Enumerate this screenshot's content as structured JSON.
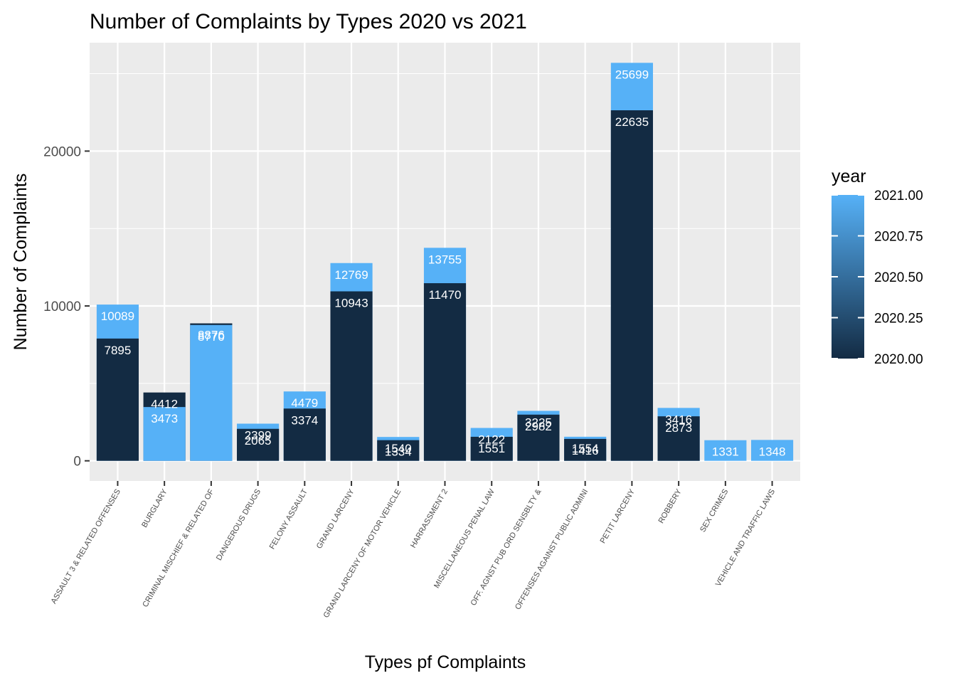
{
  "chart_data": {
    "type": "bar",
    "title": "Number of Complaints by Types 2020 vs 2021",
    "xlabel": "Types pf Complaints",
    "ylabel": "Number of Complaints",
    "ylim": [
      -1300,
      27000
    ],
    "yticks": [
      0,
      10000,
      20000
    ],
    "grid": true,
    "categories": [
      "ASSAULT 3 & RELATED OFFENSES",
      "BURGLARY",
      "CRIMINAL MISCHIEF & RELATED OF",
      "DANGEROUS DRUGS",
      "FELONY ASSAULT",
      "GRAND LARCENY",
      "GRAND LARCENY OF MOTOR VEHICLE",
      "HARRASSMENT 2",
      "MISCELLANEOUS PENAL LAW",
      "OFF. AGNST PUB ORD SENSBLTY &",
      "OFFENSES AGAINST PUBLIC ADMINI",
      "PETIT LARCENY",
      "ROBBERY",
      "SEX CRIMES",
      "VEHICLE AND TRAFFIC LAWS"
    ],
    "series": [
      {
        "name": "2020.00",
        "color": "#132B43",
        "values": [
          7895,
          4412,
          8876,
          2065,
          3374,
          10943,
          1334,
          11470,
          1551,
          2982,
          1416,
          22635,
          2873,
          null,
          null
        ]
      },
      {
        "name": "2021.00",
        "color": "#56B1F7",
        "values": [
          10089,
          3473,
          8770,
          2399,
          4479,
          12769,
          1540,
          13755,
          2122,
          3225,
          1554,
          25699,
          3416,
          1331,
          1348
        ]
      }
    ],
    "legend": {
      "title": "year",
      "placement": "right",
      "labels": [
        "2021.00",
        "2020.75",
        "2020.50",
        "2020.25",
        "2020.00"
      ],
      "gradient_low": "#132B43",
      "gradient_high": "#56B1F7"
    },
    "panel_background": "#EBEBEB"
  }
}
